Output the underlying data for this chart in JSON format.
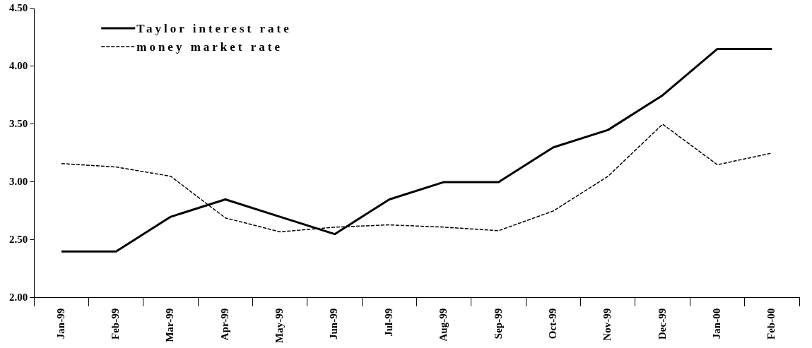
{
  "chart_data": {
    "type": "line",
    "categories": [
      "Jan-99",
      "Feb-99",
      "Mar-99",
      "Apr-99",
      "May-99",
      "Jun-99",
      "Jul-99",
      "Aug-99",
      "Sep-99",
      "Oct-99",
      "Nov-99",
      "Dec-99",
      "Jan-00",
      "Feb-00"
    ],
    "series": [
      {
        "name": "Taylor interest rate",
        "color": "#000000",
        "line_style": "solid",
        "values": [
          2.4,
          2.4,
          2.7,
          2.85,
          2.7,
          2.55,
          2.85,
          3.0,
          3.0,
          3.3,
          3.45,
          3.75,
          4.15,
          4.15
        ]
      },
      {
        "name": "money market rate",
        "color": "#000000",
        "line_style": "dashed",
        "values": [
          3.16,
          3.13,
          3.05,
          2.69,
          2.57,
          2.61,
          2.63,
          2.61,
          2.58,
          2.75,
          3.05,
          3.5,
          3.15,
          3.25
        ]
      }
    ],
    "ylim": [
      2,
      4.5
    ],
    "yticks": [
      {
        "value": 2,
        "label": "2.00"
      },
      {
        "value": 2.5,
        "label": "2.50"
      },
      {
        "value": 3,
        "label": "3.00"
      },
      {
        "value": 3.5,
        "label": "3.50"
      },
      {
        "value": 4,
        "label": "4.00"
      },
      {
        "value": 4.5,
        "label": "4.50"
      }
    ],
    "grid": false,
    "legend": "top left",
    "marker": "none"
  }
}
